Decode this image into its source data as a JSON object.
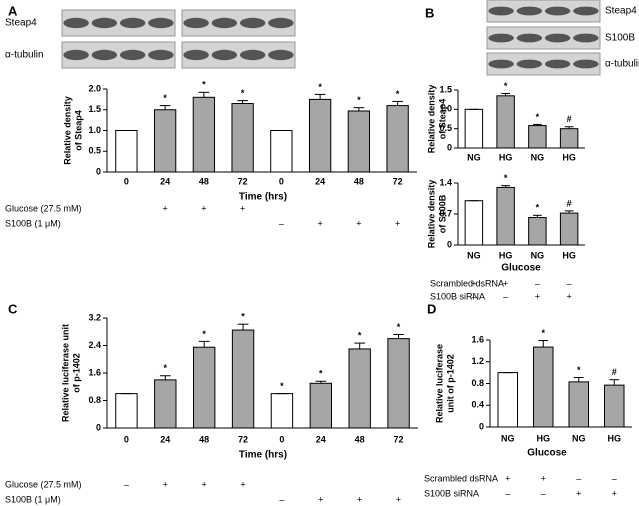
{
  "chart_data": [
    {
      "type": "bar",
      "panel": "A",
      "blot_labels": [
        "Steap4",
        "α-tubulin"
      ],
      "ylabel": [
        "Relative density",
        "of Steap4"
      ],
      "xlabel": "Time (hrs)",
      "categories": [
        "0",
        "24",
        "48",
        "72",
        "0",
        "24",
        "48",
        "72"
      ],
      "values": [
        1.0,
        1.5,
        1.8,
        1.65,
        1.0,
        1.75,
        1.47,
        1.6
      ],
      "errors": [
        0,
        0.1,
        0.12,
        0.07,
        0,
        0.12,
        0.08,
        0.1
      ],
      "annotations": [
        null,
        "*",
        "*",
        "*",
        null,
        "*",
        "*",
        "*"
      ],
      "colors": [
        "#ffffff",
        "#a6a6a6",
        "#a6a6a6",
        "#a6a6a6",
        "#ffffff",
        "#a6a6a6",
        "#a6a6a6",
        "#a6a6a6"
      ],
      "ylim": [
        0,
        2.0
      ],
      "yticks": [
        0,
        0.5,
        {
          "value": 1.0,
          "label": "1.0"
        },
        1.5,
        {
          "value": 2.0,
          "label": "2.0"
        }
      ],
      "conditions": [
        {
          "label": "Glucose (27.5 mM)",
          "marks": [
            null,
            "+",
            "+",
            "+",
            null,
            null,
            null,
            null
          ]
        },
        {
          "label": "S100B (1 μM)",
          "marks": [
            null,
            null,
            null,
            null,
            "–",
            "+",
            "+",
            "+"
          ]
        }
      ]
    },
    {
      "type": "bar",
      "panel": "B",
      "blot_labels": [
        "Steap4",
        "S100B",
        "α-tubulin"
      ],
      "ylabel": [
        "Relative density",
        "of Steap4"
      ],
      "categories": [
        "NG",
        "HG",
        "NG",
        "HG"
      ],
      "values": [
        1.0,
        1.35,
        0.58,
        0.5
      ],
      "errors": [
        0,
        0.06,
        0.03,
        0.05
      ],
      "annotations": [
        null,
        "*",
        "*",
        "#"
      ],
      "colors": [
        "#ffffff",
        "#a6a6a6",
        "#a6a6a6",
        "#a6a6a6"
      ],
      "ylim": [
        0,
        1.5
      ],
      "yticks": [
        0,
        0.5,
        {
          "value": 1.0,
          "label": "1.0"
        },
        1.5
      ]
    },
    {
      "type": "bar",
      "ylabel": [
        "Relative density",
        "of S100B"
      ],
      "xlabel": "Glucose",
      "categories": [
        "NG",
        "HG",
        "NG",
        "HG"
      ],
      "values": [
        1.0,
        1.3,
        0.62,
        0.72
      ],
      "errors": [
        0,
        0.04,
        0.05,
        0.05
      ],
      "annotations": [
        null,
        "*",
        "*",
        "#"
      ],
      "colors": [
        "#ffffff",
        "#a6a6a6",
        "#a6a6a6",
        "#a6a6a6"
      ],
      "ylim": [
        0,
        1.4
      ],
      "yticks": [
        0,
        0.7,
        1.4
      ],
      "conditions": [
        {
          "label": "Scrambled dsRNA",
          "marks": [
            "+",
            "+",
            "–",
            "–"
          ]
        },
        {
          "label": "S100B siRNA",
          "marks": [
            "–",
            "–",
            "+",
            "+"
          ]
        }
      ]
    },
    {
      "type": "bar",
      "panel": "C",
      "ylabel": [
        "Relative luciferase unit",
        "of p-1402"
      ],
      "xlabel": "Time (hrs)",
      "categories": [
        "0",
        "24",
        "48",
        "72",
        "0",
        "24",
        "48",
        "72"
      ],
      "values": [
        1.0,
        1.4,
        2.35,
        2.85,
        1.0,
        1.3,
        2.3,
        2.6
      ],
      "errors": [
        0,
        0.12,
        0.17,
        0.17,
        0,
        0.06,
        0.17,
        0.12
      ],
      "annotations": [
        null,
        "*",
        "*",
        "*",
        "*",
        "*",
        "*",
        "*"
      ],
      "colors": [
        "#ffffff",
        "#a6a6a6",
        "#a6a6a6",
        "#a6a6a6",
        "#ffffff",
        "#a6a6a6",
        "#a6a6a6",
        "#a6a6a6"
      ],
      "ylim": [
        0,
        3.2
      ],
      "yticks": [
        0,
        0.8,
        1.6,
        2.4,
        3.2
      ],
      "conditions": [
        {
          "label": "Glucose (27.5 mM)",
          "marks": [
            "–",
            "+",
            "+",
            "+",
            null,
            null,
            null,
            null
          ]
        },
        {
          "label": "S100B (1 μM)",
          "marks": [
            null,
            null,
            null,
            null,
            "–",
            "+",
            "+",
            "+"
          ]
        }
      ]
    },
    {
      "type": "bar",
      "panel": "D",
      "ylabel": [
        "Relative luciferase",
        "unit of p-1402"
      ],
      "xlabel": "Glucose",
      "categories": [
        "NG",
        "HG",
        "NG",
        "HG"
      ],
      "values": [
        1.0,
        1.47,
        0.83,
        0.77
      ],
      "errors": [
        0,
        0.12,
        0.08,
        0.1
      ],
      "annotations": [
        null,
        "*",
        "*",
        "#"
      ],
      "colors": [
        "#ffffff",
        "#a6a6a6",
        "#a6a6a6",
        "#a6a6a6"
      ],
      "ylim": [
        0,
        1.6
      ],
      "yticks": [
        0,
        0.4,
        0.8,
        1.2,
        1.6
      ],
      "conditions": [
        {
          "label": "Scrambled dsRNA",
          "marks": [
            "+",
            "+",
            "–",
            "–"
          ]
        },
        {
          "label": "S100B siRNA",
          "marks": [
            "–",
            "–",
            "+",
            "+"
          ]
        }
      ]
    }
  ]
}
